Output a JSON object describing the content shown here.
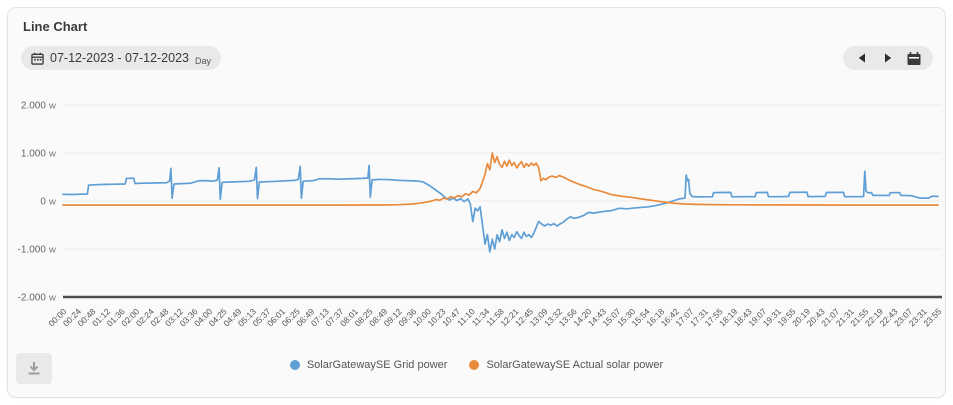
{
  "header": {
    "title": "Line Chart"
  },
  "toolbar": {
    "date_range": "07-12-2023 - 07-12-2023",
    "granularity": "Day",
    "icons": {
      "date_calendar": "calendar-outline",
      "prev": "left-triangle",
      "next": "right-triangle",
      "jump_calendar": "calendar-filled",
      "download": "download-arrow"
    }
  },
  "colors": {
    "grid_power": "#5f9fd6",
    "solar_power": "#e98b3d",
    "card_bg": "#fafafa",
    "grid_line": "#ececec",
    "axis_line": "#4d4d4d",
    "tick_text": "#666666"
  },
  "chart_data": {
    "type": "line",
    "title": "Line Chart",
    "xlabel": "",
    "ylabel": "",
    "y_unit": "W",
    "ylim": [
      -2000,
      2000
    ],
    "grid": true,
    "legend_position": "bottom",
    "y_ticks": [
      {
        "label": "2.000",
        "value": 2000
      },
      {
        "label": "1.000",
        "value": 1000
      },
      {
        "label": "0",
        "value": 0
      },
      {
        "label": "-1.000",
        "value": -1000
      },
      {
        "label": "-2.000",
        "value": -2000
      }
    ],
    "x_tick_labels": [
      "00:00",
      "00:24",
      "00:48",
      "01:12",
      "01:36",
      "02:00",
      "02:24",
      "02:48",
      "03:12",
      "03:36",
      "04:00",
      "04:25",
      "04:49",
      "05:13",
      "05:37",
      "06:01",
      "06:25",
      "06:49",
      "07:13",
      "07:37",
      "08:01",
      "08:25",
      "08:49",
      "09:12",
      "09:36",
      "10:00",
      "10:23",
      "10:47",
      "11:10",
      "11:34",
      "11:58",
      "12:21",
      "12:45",
      "13:09",
      "13:32",
      "13:56",
      "14:20",
      "14:43",
      "15:07",
      "15:30",
      "15:54",
      "16:18",
      "16:42",
      "17:07",
      "17:31",
      "17:55",
      "18:19",
      "18:43",
      "19:07",
      "19:31",
      "19:55",
      "20:19",
      "20:43",
      "21:07",
      "21:31",
      "21:55",
      "22:19",
      "22:43",
      "23:07",
      "23:31",
      "23:55"
    ],
    "series": [
      {
        "name": "SolarGatewaySE Grid power",
        "color": "#5f9fd6",
        "unit": "W",
        "points": [
          [
            "00:00",
            140
          ],
          [
            "00:15",
            135
          ],
          [
            "00:30",
            142
          ],
          [
            "00:40",
            145
          ],
          [
            "00:42",
            330
          ],
          [
            "00:55",
            340
          ],
          [
            "01:10",
            345
          ],
          [
            "01:25",
            350
          ],
          [
            "01:42",
            355
          ],
          [
            "01:44",
            470
          ],
          [
            "01:56",
            475
          ],
          [
            "01:58",
            365
          ],
          [
            "02:10",
            370
          ],
          [
            "02:30",
            375
          ],
          [
            "02:50",
            382
          ],
          [
            "02:55",
            420
          ],
          [
            "02:57",
            680
          ],
          [
            "02:59",
            60
          ],
          [
            "03:02",
            355
          ],
          [
            "03:15",
            362
          ],
          [
            "03:30",
            370
          ],
          [
            "03:42",
            420
          ],
          [
            "03:55",
            425
          ],
          [
            "04:05",
            415
          ],
          [
            "04:13",
            432
          ],
          [
            "04:16",
            690
          ],
          [
            "04:18",
            40
          ],
          [
            "04:21",
            390
          ],
          [
            "04:35",
            396
          ],
          [
            "04:50",
            402
          ],
          [
            "05:05",
            410
          ],
          [
            "05:14",
            440
          ],
          [
            "05:17",
            700
          ],
          [
            "05:19",
            50
          ],
          [
            "05:22",
            396
          ],
          [
            "05:35",
            402
          ],
          [
            "05:50",
            410
          ],
          [
            "06:05",
            420
          ],
          [
            "06:20",
            430
          ],
          [
            "06:26",
            452
          ],
          [
            "06:29",
            720
          ],
          [
            "06:31",
            60
          ],
          [
            "06:34",
            412
          ],
          [
            "06:50",
            422
          ],
          [
            "07:00",
            460
          ],
          [
            "07:15",
            465
          ],
          [
            "07:30",
            455
          ],
          [
            "07:45",
            460
          ],
          [
            "08:00",
            466
          ],
          [
            "08:10",
            470
          ],
          [
            "08:20",
            480
          ],
          [
            "08:22",
            740
          ],
          [
            "08:24",
            80
          ],
          [
            "08:27",
            440
          ],
          [
            "08:40",
            450
          ],
          [
            "08:55",
            446
          ],
          [
            "09:10",
            432
          ],
          [
            "09:25",
            422
          ],
          [
            "09:40",
            416
          ],
          [
            "09:50",
            400
          ],
          [
            "10:00",
            330
          ],
          [
            "10:10",
            240
          ],
          [
            "10:20",
            150
          ],
          [
            "10:28",
            60
          ],
          [
            "10:34",
            20
          ],
          [
            "10:40",
            62
          ],
          [
            "10:46",
            8
          ],
          [
            "10:52",
            50
          ],
          [
            "10:58",
            -12
          ],
          [
            "11:04",
            42
          ],
          [
            "11:08",
            -60
          ],
          [
            "11:12",
            -430
          ],
          [
            "11:16",
            -150
          ],
          [
            "11:20",
            -205
          ],
          [
            "11:24",
            -120
          ],
          [
            "11:28",
            -500
          ],
          [
            "11:32",
            -900
          ],
          [
            "11:36",
            -700
          ],
          [
            "11:40",
            -1060
          ],
          [
            "11:44",
            -800
          ],
          [
            "11:48",
            -1000
          ],
          [
            "11:52",
            -705
          ],
          [
            "11:56",
            -850
          ],
          [
            "12:00",
            -600
          ],
          [
            "12:04",
            -780
          ],
          [
            "12:08",
            -650
          ],
          [
            "12:12",
            -820
          ],
          [
            "12:16",
            -700
          ],
          [
            "12:20",
            -760
          ],
          [
            "12:24",
            -640
          ],
          [
            "12:28",
            -720
          ],
          [
            "12:32",
            -780
          ],
          [
            "12:36",
            -650
          ],
          [
            "12:40",
            -740
          ],
          [
            "12:44",
            -700
          ],
          [
            "12:48",
            -760
          ],
          [
            "12:52",
            -680
          ],
          [
            "12:56",
            -550
          ],
          [
            "13:00",
            -430
          ],
          [
            "13:05",
            -480
          ],
          [
            "13:10",
            -520
          ],
          [
            "13:15",
            -480
          ],
          [
            "13:20",
            -505
          ],
          [
            "13:25",
            -470
          ],
          [
            "13:30",
            -520
          ],
          [
            "13:35",
            -480
          ],
          [
            "13:40",
            -445
          ],
          [
            "13:46",
            -380
          ],
          [
            "13:52",
            -330
          ],
          [
            "13:58",
            -360
          ],
          [
            "14:06",
            -340
          ],
          [
            "14:14",
            -300
          ],
          [
            "14:22",
            -238
          ],
          [
            "14:30",
            -252
          ],
          [
            "14:40",
            -232
          ],
          [
            "14:50",
            -212
          ],
          [
            "15:00",
            -200
          ],
          [
            "15:12",
            -152
          ],
          [
            "15:25",
            -162
          ],
          [
            "15:40",
            -142
          ],
          [
            "15:50",
            -132
          ],
          [
            "16:00",
            -120
          ],
          [
            "16:10",
            -100
          ],
          [
            "16:20",
            -70
          ],
          [
            "16:30",
            -40
          ],
          [
            "16:40",
            0
          ],
          [
            "16:50",
            42
          ],
          [
            "17:00",
            62
          ],
          [
            "17:02",
            540
          ],
          [
            "17:04",
            420
          ],
          [
            "17:06",
            450
          ],
          [
            "17:08",
            160
          ],
          [
            "17:12",
            92
          ],
          [
            "17:25",
            86
          ],
          [
            "17:45",
            90
          ],
          [
            "17:47",
            176
          ],
          [
            "18:15",
            180
          ],
          [
            "18:17",
            88
          ],
          [
            "18:40",
            90
          ],
          [
            "18:55",
            92
          ],
          [
            "18:57",
            176
          ],
          [
            "19:15",
            180
          ],
          [
            "19:17",
            90
          ],
          [
            "19:40",
            92
          ],
          [
            "19:50",
            96
          ],
          [
            "19:52",
            180
          ],
          [
            "20:20",
            184
          ],
          [
            "20:22",
            92
          ],
          [
            "20:50",
            96
          ],
          [
            "20:52",
            178
          ],
          [
            "21:20",
            182
          ],
          [
            "21:22",
            90
          ],
          [
            "21:48",
            92
          ],
          [
            "21:53",
            96
          ],
          [
            "21:55",
            620
          ],
          [
            "21:57",
            210
          ],
          [
            "22:00",
            170
          ],
          [
            "22:06",
            176
          ],
          [
            "22:08",
            116
          ],
          [
            "22:25",
            118
          ],
          [
            "22:35",
            115
          ],
          [
            "22:37",
            172
          ],
          [
            "22:52",
            176
          ],
          [
            "22:54",
            116
          ],
          [
            "23:10",
            112
          ],
          [
            "23:25",
            60
          ],
          [
            "23:40",
            62
          ],
          [
            "23:45",
            100
          ],
          [
            "23:55",
            96
          ]
        ]
      },
      {
        "name": "SolarGatewaySE Actual solar power",
        "color": "#e98b3d",
        "unit": "W",
        "points": [
          [
            "00:00",
            -85
          ],
          [
            "01:30",
            -85
          ],
          [
            "03:00",
            -86
          ],
          [
            "04:30",
            -86
          ],
          [
            "06:00",
            -86
          ],
          [
            "07:30",
            -85
          ],
          [
            "08:40",
            -84
          ],
          [
            "09:10",
            -78
          ],
          [
            "09:30",
            -65
          ],
          [
            "09:45",
            -45
          ],
          [
            "09:55",
            -25
          ],
          [
            "10:05",
            0
          ],
          [
            "10:12",
            32
          ],
          [
            "10:18",
            15
          ],
          [
            "10:24",
            60
          ],
          [
            "10:30",
            40
          ],
          [
            "10:36",
            90
          ],
          [
            "10:42",
            66
          ],
          [
            "10:48",
            112
          ],
          [
            "10:54",
            86
          ],
          [
            "11:00",
            150
          ],
          [
            "11:06",
            122
          ],
          [
            "11:12",
            200
          ],
          [
            "11:18",
            170
          ],
          [
            "11:24",
            262
          ],
          [
            "11:28",
            400
          ],
          [
            "11:32",
            552
          ],
          [
            "11:36",
            780
          ],
          [
            "11:40",
            650
          ],
          [
            "11:44",
            1000
          ],
          [
            "11:48",
            800
          ],
          [
            "11:52",
            920
          ],
          [
            "11:56",
            762
          ],
          [
            "12:00",
            700
          ],
          [
            "12:04",
            830
          ],
          [
            "12:08",
            722
          ],
          [
            "12:12",
            850
          ],
          [
            "12:16",
            740
          ],
          [
            "12:20",
            802
          ],
          [
            "12:24",
            690
          ],
          [
            "12:28",
            762
          ],
          [
            "12:32",
            820
          ],
          [
            "12:36",
            700
          ],
          [
            "12:40",
            780
          ],
          [
            "12:44",
            722
          ],
          [
            "12:48",
            790
          ],
          [
            "12:52",
            742
          ],
          [
            "12:56",
            790
          ],
          [
            "13:00",
            700
          ],
          [
            "13:04",
            420
          ],
          [
            "13:08",
            470
          ],
          [
            "13:12",
            442
          ],
          [
            "13:16",
            490
          ],
          [
            "13:22",
            520
          ],
          [
            "13:28",
            492
          ],
          [
            "13:34",
            530
          ],
          [
            "13:40",
            500
          ],
          [
            "13:46",
            462
          ],
          [
            "13:52",
            422
          ],
          [
            "14:00",
            382
          ],
          [
            "14:10",
            332
          ],
          [
            "14:20",
            292
          ],
          [
            "14:30",
            242
          ],
          [
            "14:40",
            212
          ],
          [
            "14:50",
            172
          ],
          [
            "15:00",
            132
          ],
          [
            "15:15",
            102
          ],
          [
            "15:30",
            80
          ],
          [
            "15:45",
            50
          ],
          [
            "16:00",
            22
          ],
          [
            "16:15",
            -5
          ],
          [
            "16:30",
            -30
          ],
          [
            "16:45",
            -50
          ],
          [
            "17:00",
            -62
          ],
          [
            "17:20",
            -70
          ],
          [
            "17:45",
            -76
          ],
          [
            "18:30",
            -80
          ],
          [
            "19:30",
            -82
          ],
          [
            "20:30",
            -84
          ],
          [
            "21:30",
            -85
          ],
          [
            "22:30",
            -85
          ],
          [
            "23:55",
            -86
          ]
        ]
      }
    ]
  }
}
